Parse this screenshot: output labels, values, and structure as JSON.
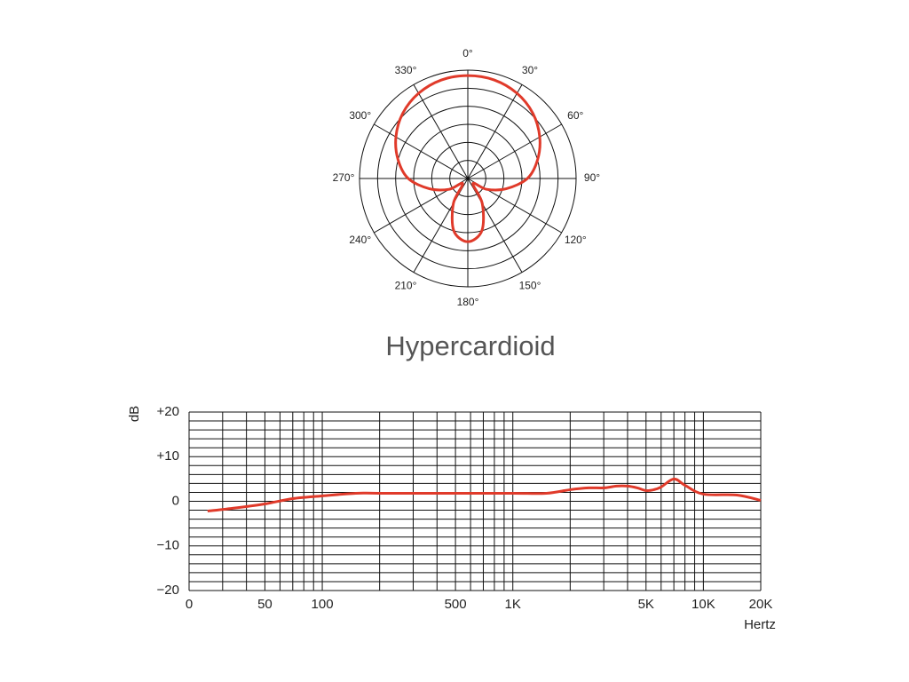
{
  "chart_data": [
    {
      "type": "polar",
      "theta": [
        0,
        15,
        30,
        45,
        60,
        75,
        90,
        105,
        120,
        135,
        150,
        165,
        180,
        195,
        210,
        225,
        240,
        255,
        270,
        285,
        300,
        315,
        330,
        345
      ],
      "r": [
        5.7,
        5.65,
        5.45,
        5.1,
        4.6,
        4.0,
        3.3,
        2.2,
        1.2,
        0.4,
        1.6,
        3.0,
        3.5,
        3.0,
        1.6,
        0.4,
        1.2,
        2.2,
        3.3,
        4.0,
        4.6,
        5.1,
        5.45,
        5.65
      ],
      "color": "#e03a2a",
      "rlim": [
        0,
        6
      ],
      "rgrid": [
        1,
        2,
        3,
        4,
        5,
        6
      ],
      "thetaticks": [
        {
          "value": 0,
          "label": "0°"
        },
        {
          "value": 30,
          "label": "30°"
        },
        {
          "value": 60,
          "label": "60°"
        },
        {
          "value": 90,
          "label": "90°"
        },
        {
          "value": 120,
          "label": "120°"
        },
        {
          "value": 150,
          "label": "150°"
        },
        {
          "value": 180,
          "label": "180°"
        },
        {
          "value": 210,
          "label": "210°"
        },
        {
          "value": 240,
          "label": "240°"
        },
        {
          "value": 270,
          "label": "270°"
        },
        {
          "value": 300,
          "label": "300°"
        },
        {
          "value": 330,
          "label": "330°"
        }
      ],
      "title": "Hypercardioid"
    },
    {
      "type": "line",
      "x": [
        25,
        35,
        50,
        70,
        100,
        150,
        200,
        500,
        1000,
        1500,
        2000,
        2500,
        3000,
        3500,
        4000,
        4500,
        5000,
        5500,
        6000,
        7000,
        8000,
        10000,
        15000,
        20000
      ],
      "values": [
        -2.2,
        -1.5,
        -0.6,
        0.6,
        1.2,
        1.8,
        1.8,
        1.8,
        1.8,
        1.8,
        2.6,
        3.0,
        3.0,
        3.4,
        3.4,
        3.0,
        2.4,
        2.6,
        3.2,
        5.0,
        3.6,
        1.6,
        1.4,
        0.2
      ],
      "color": "#e03a2a",
      "xlog": true,
      "xlim": [
        20,
        20000
      ],
      "xticks": [
        {
          "value": 20,
          "label": "0"
        },
        50,
        100,
        500,
        {
          "value": 1000,
          "label": "1K"
        },
        {
          "value": 5000,
          "label": "5K"
        },
        {
          "value": 10000,
          "label": "10K"
        },
        {
          "value": 20000,
          "label": "20K"
        }
      ],
      "xminor": [
        30,
        40,
        60,
        70,
        80,
        90,
        200,
        300,
        400,
        600,
        700,
        800,
        900,
        2000,
        3000,
        4000,
        6000,
        7000,
        8000,
        9000
      ],
      "ylim": [
        -20,
        20
      ],
      "yticks": [
        {
          "value": 20,
          "label": "+20"
        },
        {
          "value": 10,
          "label": "+10"
        },
        0,
        {
          "value": -10,
          "label": "−10"
        },
        {
          "value": -20,
          "label": "−20"
        }
      ],
      "yminor": [
        -18,
        -16,
        -14,
        -12,
        -8,
        -6,
        -4,
        -2,
        2,
        4,
        6,
        8,
        12,
        14,
        16,
        18
      ],
      "ylabel": "dB",
      "xlabel": "Hertz",
      "grid": true
    }
  ]
}
